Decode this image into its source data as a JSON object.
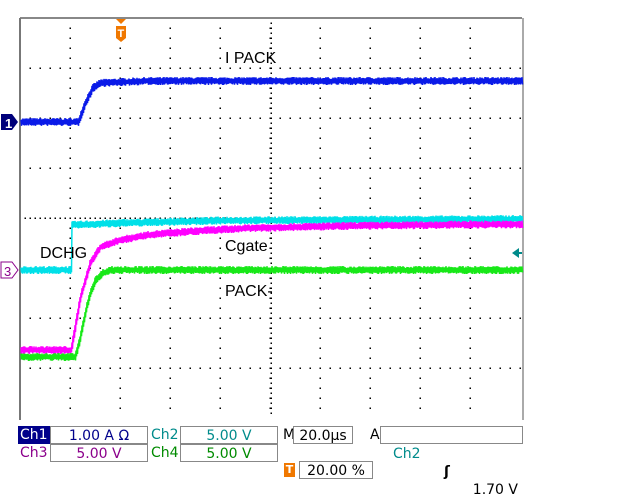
{
  "chart_data": {
    "type": "line",
    "title": "",
    "xlabel": "",
    "ylabel": "",
    "x_unit": "µs",
    "xlim": [
      -20,
      180
    ],
    "ylim_divisions": [
      -4,
      4
    ],
    "grid": true,
    "annotations": [
      "I PACK",
      "DCHG",
      "Cgate",
      "PACK-"
    ],
    "series": [
      {
        "channel": "Ch1",
        "color": "#0a1ae8",
        "x": [
          -20,
          3.2,
          6,
          9,
          12,
          30,
          180
        ],
        "y": [
          1.92,
          1.92,
          2.3,
          2.6,
          2.7,
          2.74,
          2.74
        ]
      },
      {
        "channel": "Ch2",
        "color": "#00e0e8",
        "x": [
          -20,
          0.4,
          0.5,
          20,
          60,
          180
        ],
        "y": [
          -1.04,
          -1.04,
          -0.14,
          -0.1,
          -0.05,
          -0.02
        ]
      },
      {
        "channel": "Ch3",
        "color": "#ff00ff",
        "x": [
          -20,
          0.4,
          4,
          8,
          12,
          20,
          32,
          50,
          72,
          110,
          160
        ],
        "y": [
          -2.64,
          -2.64,
          -1.6,
          -0.9,
          -0.58,
          -0.44,
          -0.33,
          -0.26,
          -0.2,
          -0.16,
          -0.13
        ]
      },
      {
        "channel": "Ch4",
        "color": "#18e818",
        "x": [
          -20,
          2,
          4,
          6,
          8,
          10,
          13,
          16,
          180
        ],
        "y": [
          -2.78,
          -2.78,
          -2.4,
          -1.9,
          -1.5,
          -1.25,
          -1.1,
          -1.04,
          -1.04
        ]
      }
    ]
  },
  "labels": {
    "ipack": "I PACK",
    "dchg": "DCHG",
    "cgate": "Cgate",
    "pack": "PACK-"
  },
  "markers": {
    "ch1": "1",
    "ch3": "3",
    "trigger": "T"
  },
  "status": {
    "ch1": {
      "name": "Ch1",
      "scale": "1.00 A Ω",
      "color": "#00008b"
    },
    "ch2": {
      "name": "Ch2",
      "scale": "5.00 V",
      "color": "#008b8b"
    },
    "ch3": {
      "name": "Ch3",
      "scale": "5.00 V",
      "color": "#8b008b"
    },
    "ch4": {
      "name": "Ch4",
      "scale": "5.00 V",
      "color": "#008b00"
    },
    "timebase_label": "M",
    "timebase": "20.0µs",
    "trigger_label": "A",
    "trigger_source": "Ch2",
    "trigger_slope": "ʃ",
    "trigger_level": "1.70 V",
    "trigger_position_icon": "T",
    "trigger_position": "20.00 %"
  }
}
